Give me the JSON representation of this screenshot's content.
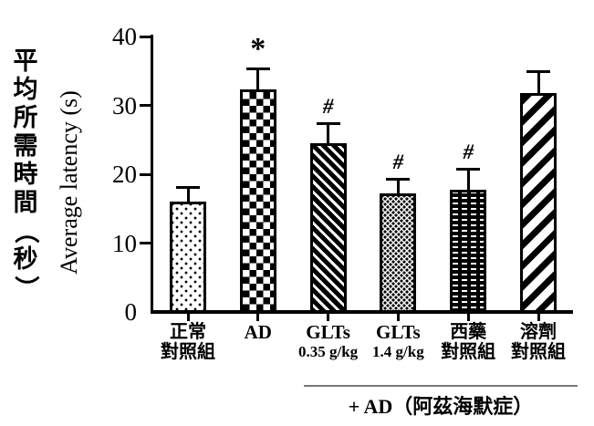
{
  "figure": {
    "background": "#ffffff",
    "ink_color": "#000000",
    "group_line_color": "#777777"
  },
  "chart_data": {
    "type": "bar",
    "title": "",
    "ylabel_zh": "平均所需時間（秒）",
    "ylabel_en": "Average latency (s)",
    "ylim": [
      0,
      40
    ],
    "yticks": [
      "0",
      "10",
      "20",
      "30",
      "40"
    ],
    "grid": false,
    "legend": false,
    "categories": [
      {
        "name": "normal-control",
        "label_lines": [
          "正常",
          "對照組"
        ],
        "value": 16.0,
        "error": 2.0,
        "pattern": "dots-sparse",
        "annotation": ""
      },
      {
        "name": "ad",
        "label_lines": [
          "AD"
        ],
        "value": 32.3,
        "error": 2.9,
        "pattern": "checkerboard",
        "annotation": "*"
      },
      {
        "name": "glts-0.35",
        "label_lines": [
          "GLTs",
          "0.35 g/kg"
        ],
        "value": 24.5,
        "error": 2.8,
        "pattern": "diagonal-backslash",
        "annotation": "#"
      },
      {
        "name": "glts-1.4",
        "label_lines": [
          "GLTs",
          "1.4 g/kg"
        ],
        "value": 17.2,
        "error": 2.0,
        "pattern": "dots-dense",
        "annotation": "#"
      },
      {
        "name": "western-drug-control",
        "label_lines": [
          "西藥",
          "對照組"
        ],
        "value": 17.7,
        "error": 3.0,
        "pattern": "bricks",
        "annotation": "#"
      },
      {
        "name": "solvent-control",
        "label_lines": [
          "溶劑",
          "對照組"
        ],
        "value": 31.8,
        "error": 3.0,
        "pattern": "diagonal-forward",
        "annotation": ""
      }
    ],
    "group_annotation": {
      "label": "+ AD（阿茲海默症）",
      "applies_to": [
        "GLTs 0.35 g/kg",
        "GLTs 1.4 g/kg",
        "西藥對照組",
        "溶劑對照組"
      ]
    }
  }
}
